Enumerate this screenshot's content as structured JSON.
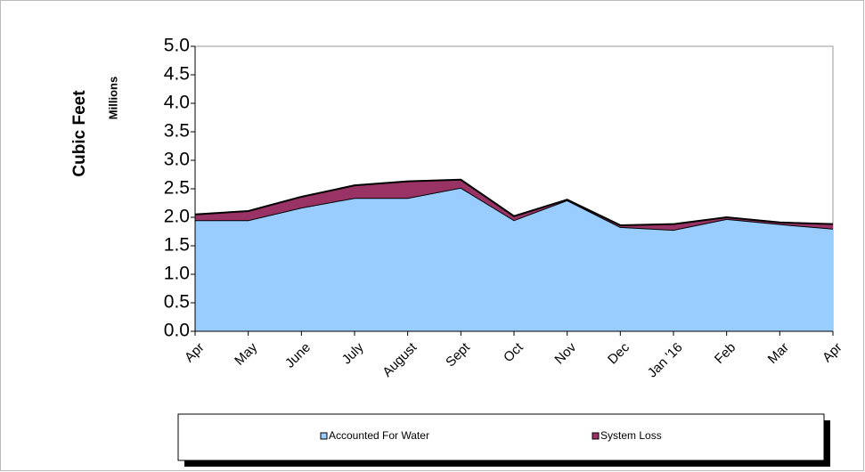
{
  "chart_data": {
    "type": "stacked_area",
    "y_label": "Cubic Feet",
    "y_unit_label": "Millions",
    "categories": [
      "Apr",
      "May",
      "June",
      "July",
      "August",
      "Sept",
      "Oct",
      "Nov",
      "Dec",
      "Jan '16",
      "Feb",
      "Mar",
      "Apr"
    ],
    "series": [
      {
        "name": "Accounted For Water",
        "color": "#99ccff",
        "values": [
          1.95,
          1.95,
          2.17,
          2.34,
          2.34,
          2.52,
          1.95,
          2.3,
          1.83,
          1.78,
          1.97,
          1.88,
          1.8
        ]
      },
      {
        "name": "System Loss",
        "color": "#993366",
        "values": [
          0.1,
          0.16,
          0.19,
          0.22,
          0.29,
          0.14,
          0.07,
          0.01,
          0.03,
          0.1,
          0.03,
          0.03,
          0.08
        ]
      }
    ],
    "ylim": [
      0,
      5
    ],
    "yticks": [
      {
        "value": 0,
        "label": "0.0"
      },
      {
        "value": 0.5,
        "label": "0.5"
      },
      {
        "value": 1,
        "label": "1.0"
      },
      {
        "value": 1.5,
        "label": "1.5"
      },
      {
        "value": 2,
        "label": "2.0"
      },
      {
        "value": 2.5,
        "label": "2.5"
      },
      {
        "value": 3,
        "label": "3.0"
      },
      {
        "value": 3.5,
        "label": "3.5"
      },
      {
        "value": 4,
        "label": "4.0"
      },
      {
        "value": 4.5,
        "label": "4.5"
      },
      {
        "value": 5,
        "label": "5.0"
      }
    ]
  }
}
